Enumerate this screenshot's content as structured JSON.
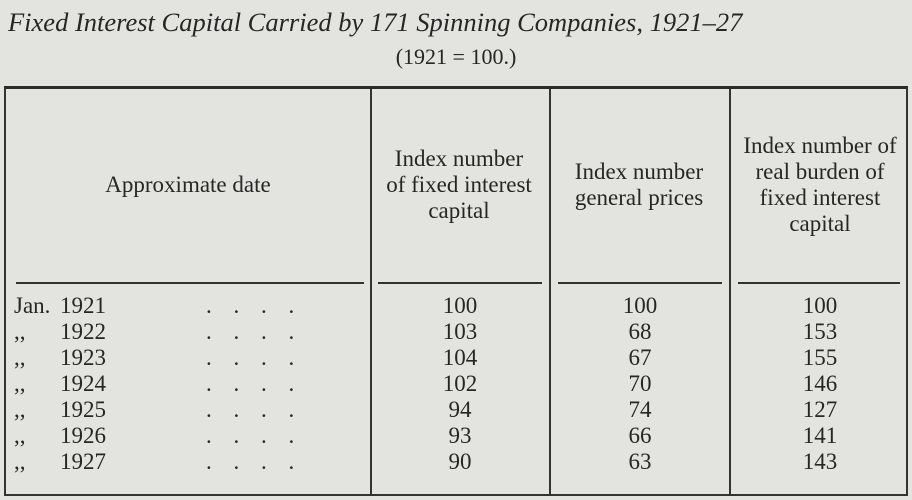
{
  "title": "Fixed Interest Capital Carried by 171 Spinning Companies, 1921–27",
  "subtitle": "(1921 = 100.)",
  "table": {
    "headers": [
      "Approximate date",
      "Index number of fixed interest capital",
      "Index number general prices",
      "Index number of real burden of fixed interest capital"
    ],
    "rows": [
      {
        "prefix": "Jan.",
        "year": "1921",
        "fixed_capital": "100",
        "general_prices": "100",
        "real_burden": "100"
      },
      {
        "prefix": ",,",
        "year": "1922",
        "fixed_capital": "103",
        "general_prices": "68",
        "real_burden": "153"
      },
      {
        "prefix": ",,",
        "year": "1923",
        "fixed_capital": "104",
        "general_prices": "67",
        "real_burden": "155"
      },
      {
        "prefix": ",,",
        "year": "1924",
        "fixed_capital": "102",
        "general_prices": "70",
        "real_burden": "146"
      },
      {
        "prefix": ",,",
        "year": "1925",
        "fixed_capital": "94",
        "general_prices": "74",
        "real_burden": "127"
      },
      {
        "prefix": ",,",
        "year": "1926",
        "fixed_capital": "93",
        "general_prices": "66",
        "real_burden": "141"
      },
      {
        "prefix": ",,",
        "year": "1927",
        "fixed_capital": "90",
        "general_prices": "63",
        "real_burden": "143"
      }
    ],
    "leader_dots": ". . . ."
  }
}
